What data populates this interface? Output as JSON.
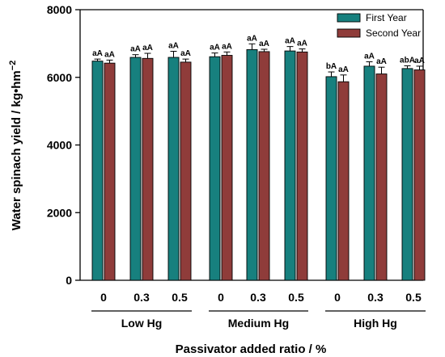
{
  "chart_data": {
    "type": "bar",
    "categories": [
      "0",
      "0.3",
      "0.5",
      "0",
      "0.3",
      "0.5",
      "0",
      "0.3",
      "0.5"
    ],
    "groups": [
      {
        "label": "Low Hg",
        "start": 0,
        "end": 2
      },
      {
        "label": "Medium Hg",
        "start": 3,
        "end": 5
      },
      {
        "label": "High Hg",
        "start": 6,
        "end": 8
      }
    ],
    "series": [
      {
        "name": "First Year",
        "color": "#17807e",
        "values": [
          6480,
          6590,
          6590,
          6610,
          6820,
          6780,
          6020,
          6330,
          6260
        ],
        "errors": [
          60,
          80,
          180,
          110,
          170,
          130,
          140,
          130,
          80
        ],
        "labels": [
          "aA",
          "aA",
          "aA",
          "aA",
          "aA",
          "aA",
          "bA",
          "aA",
          "abA"
        ]
      },
      {
        "name": "Second Year",
        "color": "#8f3c3a",
        "values": [
          6420,
          6560,
          6450,
          6650,
          6760,
          6750,
          5870,
          6100,
          6220
        ],
        "errors": [
          90,
          150,
          90,
          100,
          70,
          90,
          200,
          200,
          110
        ],
        "labels": [
          "aA",
          "aA",
          "aA",
          "aA",
          "aA",
          "aA",
          "aA",
          "aA",
          "aA"
        ]
      }
    ],
    "xlabel": "Passivator added ratio / %",
    "ylabel_main": "Water spinach yield / kg•hm",
    "ylabel_sup": "−2",
    "ylim": [
      0,
      8000
    ],
    "yticks": [
      0,
      2000,
      4000,
      6000,
      8000
    ],
    "legend_position": "top-right",
    "grid": false
  }
}
